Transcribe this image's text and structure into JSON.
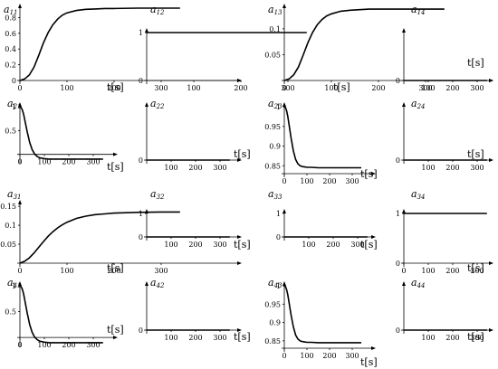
{
  "chart_data": [
    {
      "id": "a11",
      "label": "a",
      "sub": "11",
      "type": "line",
      "xlabel": "t[s]",
      "xticks": [
        0,
        100,
        200,
        300
      ],
      "xlim": [
        0,
        350
      ],
      "yticks": [
        0,
        0.2,
        0.4,
        0.6,
        0.8
      ],
      "ylim": [
        0,
        0.92
      ],
      "x": [
        0,
        10,
        20,
        30,
        40,
        50,
        60,
        70,
        80,
        90,
        100,
        120,
        140,
        160,
        180,
        200,
        250,
        300,
        340
      ],
      "y": [
        0,
        0.02,
        0.07,
        0.17,
        0.32,
        0.48,
        0.61,
        0.71,
        0.78,
        0.83,
        0.86,
        0.89,
        0.905,
        0.91,
        0.915,
        0.915,
        0.92,
        0.92,
        0.92
      ]
    },
    {
      "id": "a12",
      "label": "a",
      "sub": "12",
      "type": "line",
      "xlabel": "",
      "xticks": [
        100,
        200,
        300
      ],
      "xlim": [
        0,
        350
      ],
      "yticks": [
        0,
        1
      ],
      "ylim": [
        0,
        1
      ],
      "x": [
        0,
        340
      ],
      "y": [
        1,
        1
      ]
    },
    {
      "id": "a13",
      "label": "a",
      "sub": "13",
      "type": "line",
      "xlabel": "t[s]",
      "xticks": [
        0,
        100,
        200,
        300
      ],
      "xlim": [
        0,
        350
      ],
      "yticks": [
        0.05,
        0.1
      ],
      "ylim": [
        0,
        0.14
      ],
      "x": [
        0,
        10,
        20,
        30,
        40,
        50,
        60,
        70,
        80,
        90,
        100,
        120,
        140,
        160,
        180,
        200,
        250,
        300,
        340
      ],
      "y": [
        0,
        0.003,
        0.011,
        0.026,
        0.049,
        0.073,
        0.093,
        0.108,
        0.118,
        0.125,
        0.129,
        0.134,
        0.136,
        0.137,
        0.138,
        0.138,
        0.138,
        0.138,
        0.138
      ]
    },
    {
      "id": "a14",
      "label": "a",
      "sub": "14",
      "type": "line",
      "xlabel": "t[s]",
      "xticks": [
        100,
        200,
        300
      ],
      "xlim": [
        0,
        350
      ],
      "yticks": [
        0
      ],
      "ylim": [
        0,
        1
      ],
      "x": [
        0,
        340
      ],
      "y": [
        0,
        0
      ]
    },
    {
      "id": "a21",
      "label": "a",
      "sub": "21",
      "type": "line",
      "xlabel": "t[s]",
      "xticks": [
        0,
        100,
        200,
        300
      ],
      "xlim": [
        0,
        350
      ],
      "yticks": [
        0.5,
        1
      ],
      "ylim": [
        -0.12,
        1
      ],
      "x": [
        0,
        5,
        10,
        15,
        20,
        30,
        40,
        50,
        60,
        70,
        80,
        100,
        120,
        150,
        200,
        250,
        300,
        340
      ],
      "y": [
        1,
        0.98,
        0.93,
        0.84,
        0.72,
        0.47,
        0.25,
        0.1,
        0.01,
        -0.04,
        -0.07,
        -0.09,
        -0.1,
        -0.1,
        -0.1,
        -0.1,
        -0.1,
        -0.1
      ]
    },
    {
      "id": "a22",
      "label": "a",
      "sub": "22",
      "type": "line",
      "xlabel": "t[s]",
      "xticks": [
        100,
        200,
        300
      ],
      "xlim": [
        0,
        350
      ],
      "yticks": [
        0
      ],
      "ylim": [
        0,
        1
      ],
      "x": [
        0,
        340
      ],
      "y": [
        0,
        0
      ]
    },
    {
      "id": "a23",
      "label": "a",
      "sub": "23",
      "type": "line",
      "xlabel": "t[s]",
      "xticks": [
        0,
        100,
        200,
        300
      ],
      "xlim": [
        0,
        350
      ],
      "yticks": [
        0.85,
        0.9,
        0.95,
        1
      ],
      "ylim": [
        0.83,
        1.0
      ],
      "x": [
        0,
        5,
        10,
        15,
        20,
        30,
        40,
        50,
        60,
        70,
        80,
        90,
        100,
        120,
        150,
        200,
        250,
        300,
        340
      ],
      "y": [
        1,
        0.998,
        0.99,
        0.976,
        0.958,
        0.92,
        0.888,
        0.866,
        0.855,
        0.85,
        0.848,
        0.847,
        0.846,
        0.846,
        0.845,
        0.845,
        0.845,
        0.845,
        0.845
      ]
    },
    {
      "id": "a24",
      "label": "a",
      "sub": "24",
      "type": "line",
      "xlabel": "t[s]",
      "xticks": [
        100,
        200,
        300
      ],
      "xlim": [
        0,
        350
      ],
      "yticks": [
        0
      ],
      "ylim": [
        0,
        1
      ],
      "x": [
        0,
        340
      ],
      "y": [
        0,
        0
      ]
    },
    {
      "id": "a31",
      "label": "a",
      "sub": "31",
      "type": "line",
      "xlabel": "t[s]",
      "xticks": [
        0,
        100,
        200,
        300
      ],
      "xlim": [
        0,
        350
      ],
      "yticks": [
        0.05,
        0.1,
        0.15
      ],
      "ylim": [
        0,
        0.155
      ],
      "x": [
        0,
        10,
        20,
        30,
        40,
        50,
        60,
        70,
        80,
        90,
        100,
        120,
        140,
        160,
        180,
        200,
        250,
        300,
        340
      ],
      "y": [
        0,
        0.005,
        0.014,
        0.027,
        0.042,
        0.057,
        0.071,
        0.083,
        0.093,
        0.101,
        0.108,
        0.118,
        0.124,
        0.128,
        0.13,
        0.132,
        0.134,
        0.135,
        0.135
      ]
    },
    {
      "id": "a32",
      "label": "a",
      "sub": "32",
      "type": "line",
      "xlabel": "t[s]",
      "xticks": [
        100,
        200,
        300
      ],
      "xlim": [
        0,
        350
      ],
      "yticks": [
        0,
        1
      ],
      "ylim": [
        0,
        1
      ],
      "x": [
        0,
        340
      ],
      "y": [
        0,
        0
      ]
    },
    {
      "id": "a33",
      "label": "a",
      "sub": "33",
      "type": "line",
      "xlabel": "t[s]",
      "xticks": [
        100,
        200,
        300
      ],
      "xlim": [
        0,
        350
      ],
      "yticks": [
        0,
        1
      ],
      "ylim": [
        0,
        1
      ],
      "x": [
        0,
        340
      ],
      "y": [
        0,
        0
      ]
    },
    {
      "id": "a34",
      "label": "a",
      "sub": "34",
      "type": "line",
      "xlabel": "t[s]",
      "xticks": [
        0,
        100,
        200,
        300
      ],
      "xlim": [
        0,
        350
      ],
      "yticks": [
        0,
        1
      ],
      "ylim": [
        0,
        1
      ],
      "x": [
        0,
        340
      ],
      "y": [
        1,
        1
      ]
    },
    {
      "id": "a41",
      "label": "a",
      "sub": "41",
      "type": "line",
      "xlabel": "t[s]",
      "xticks": [
        0,
        100,
        200,
        300
      ],
      "xlim": [
        0,
        350
      ],
      "yticks": [
        0.5,
        1
      ],
      "ylim": [
        -0.12,
        1
      ],
      "x": [
        0,
        5,
        10,
        15,
        20,
        30,
        40,
        50,
        60,
        70,
        80,
        100,
        120,
        150,
        200,
        250,
        300,
        340
      ],
      "y": [
        1,
        0.98,
        0.93,
        0.84,
        0.72,
        0.47,
        0.25,
        0.1,
        0.01,
        -0.04,
        -0.07,
        -0.09,
        -0.1,
        -0.1,
        -0.1,
        -0.1,
        -0.1,
        -0.1
      ]
    },
    {
      "id": "a42",
      "label": "a",
      "sub": "42",
      "type": "line",
      "xlabel": "t[s]",
      "xticks": [
        100,
        200,
        300
      ],
      "xlim": [
        0,
        350
      ],
      "yticks": [
        0
      ],
      "ylim": [
        0,
        1
      ],
      "x": [
        0,
        340
      ],
      "y": [
        0,
        0
      ]
    },
    {
      "id": "a43",
      "label": "a",
      "sub": "43",
      "type": "line",
      "xlabel": "t[s]",
      "xticks": [
        0,
        100,
        200,
        300
      ],
      "xlim": [
        0,
        350
      ],
      "yticks": [
        0.85,
        0.9,
        0.95,
        1
      ],
      "ylim": [
        0.83,
        1.0
      ],
      "x": [
        0,
        5,
        10,
        15,
        20,
        30,
        40,
        50,
        60,
        70,
        80,
        90,
        100,
        120,
        150,
        200,
        250,
        300,
        340
      ],
      "y": [
        1,
        0.998,
        0.99,
        0.976,
        0.958,
        0.92,
        0.888,
        0.866,
        0.855,
        0.85,
        0.848,
        0.847,
        0.846,
        0.846,
        0.845,
        0.845,
        0.845,
        0.845,
        0.845
      ]
    },
    {
      "id": "a44",
      "label": "a",
      "sub": "44",
      "type": "line",
      "xlabel": "t[s]",
      "xticks": [
        100,
        200,
        300
      ],
      "xlim": [
        0,
        350
      ],
      "yticks": [
        0
      ],
      "ylim": [
        0,
        1
      ],
      "x": [
        0,
        340
      ],
      "y": [
        0,
        0
      ]
    }
  ]
}
